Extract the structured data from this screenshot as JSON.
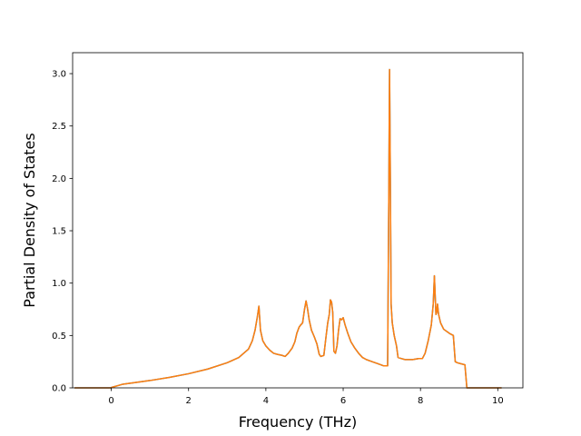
{
  "chart_data": {
    "type": "line",
    "title": "",
    "xlabel": "Frequency (THz)",
    "ylabel": "Partial Density of States",
    "xlim": [
      -1.0,
      10.65
    ],
    "ylim": [
      0.0,
      3.2
    ],
    "xticks": [
      0,
      2,
      4,
      6,
      8,
      10
    ],
    "yticks": [
      0.0,
      0.5,
      1.0,
      1.5,
      2.0,
      2.5,
      3.0
    ],
    "xtick_labels": [
      "0",
      "2",
      "4",
      "6",
      "8",
      "10"
    ],
    "ytick_labels": [
      "0.0",
      "0.5",
      "1.0",
      "1.5",
      "2.0",
      "2.5",
      "3.0"
    ],
    "grid": false,
    "legend": "none",
    "series": [
      {
        "color": "#1f77b4",
        "x": [
          -0.95,
          -0.02,
          0.0,
          0.3,
          0.6,
          1.0,
          1.5,
          2.0,
          2.5,
          3.0,
          3.3,
          3.55,
          3.65,
          3.72,
          3.78,
          3.82,
          3.86,
          3.92,
          4.0,
          4.1,
          4.2,
          4.3,
          4.42,
          4.5,
          4.58,
          4.68,
          4.75,
          4.8,
          4.86,
          4.9,
          4.95,
          5.0,
          5.04,
          5.08,
          5.12,
          5.18,
          5.25,
          5.32,
          5.38,
          5.42,
          5.5,
          5.56,
          5.6,
          5.64,
          5.67,
          5.7,
          5.73,
          5.76,
          5.8,
          5.84,
          5.88,
          5.92,
          5.96,
          6.0,
          6.05,
          6.12,
          6.2,
          6.3,
          6.4,
          6.5,
          6.6,
          6.75,
          6.9,
          7.05,
          7.15,
          7.18,
          7.2,
          7.22,
          7.24,
          7.27,
          7.32,
          7.38,
          7.42,
          7.5,
          7.6,
          7.8,
          7.95,
          8.05,
          8.12,
          8.2,
          8.28,
          8.33,
          8.36,
          8.4,
          8.42,
          8.44,
          8.47,
          8.52,
          8.6,
          8.75,
          8.85,
          8.9,
          8.95,
          9.05,
          9.15,
          9.2,
          9.25,
          9.4,
          10.1
        ],
        "y": [
          0.0,
          0.0,
          0.003,
          0.035,
          0.05,
          0.07,
          0.1,
          0.135,
          0.18,
          0.24,
          0.29,
          0.37,
          0.45,
          0.55,
          0.68,
          0.78,
          0.55,
          0.45,
          0.4,
          0.36,
          0.33,
          0.32,
          0.31,
          0.3,
          0.33,
          0.38,
          0.44,
          0.52,
          0.58,
          0.6,
          0.62,
          0.75,
          0.83,
          0.75,
          0.65,
          0.55,
          0.49,
          0.42,
          0.32,
          0.3,
          0.31,
          0.5,
          0.62,
          0.7,
          0.84,
          0.82,
          0.72,
          0.35,
          0.33,
          0.4,
          0.55,
          0.66,
          0.65,
          0.67,
          0.6,
          0.52,
          0.44,
          0.38,
          0.33,
          0.29,
          0.27,
          0.25,
          0.23,
          0.21,
          0.21,
          1.8,
          3.04,
          2.0,
          0.8,
          0.62,
          0.5,
          0.4,
          0.29,
          0.28,
          0.27,
          0.27,
          0.28,
          0.28,
          0.33,
          0.45,
          0.6,
          0.8,
          1.07,
          0.7,
          0.72,
          0.8,
          0.7,
          0.62,
          0.56,
          0.52,
          0.5,
          0.25,
          0.24,
          0.23,
          0.22,
          0.0,
          0.0,
          0.0,
          0.0
        ]
      },
      {
        "color": "#ff7f0e",
        "x": [
          -0.95,
          -0.02,
          0.0,
          0.3,
          0.6,
          1.0,
          1.5,
          2.0,
          2.5,
          3.0,
          3.3,
          3.55,
          3.65,
          3.72,
          3.78,
          3.82,
          3.86,
          3.92,
          4.0,
          4.1,
          4.2,
          4.3,
          4.42,
          4.5,
          4.58,
          4.68,
          4.75,
          4.8,
          4.86,
          4.9,
          4.95,
          5.0,
          5.04,
          5.08,
          5.12,
          5.18,
          5.25,
          5.32,
          5.38,
          5.42,
          5.5,
          5.56,
          5.6,
          5.64,
          5.67,
          5.7,
          5.73,
          5.76,
          5.8,
          5.84,
          5.88,
          5.92,
          5.96,
          6.0,
          6.05,
          6.12,
          6.2,
          6.3,
          6.4,
          6.5,
          6.6,
          6.75,
          6.9,
          7.05,
          7.15,
          7.18,
          7.2,
          7.22,
          7.24,
          7.27,
          7.32,
          7.38,
          7.42,
          7.5,
          7.6,
          7.8,
          7.95,
          8.05,
          8.12,
          8.2,
          8.28,
          8.33,
          8.36,
          8.4,
          8.42,
          8.44,
          8.47,
          8.52,
          8.6,
          8.75,
          8.85,
          8.9,
          8.95,
          9.05,
          9.15,
          9.2,
          9.25,
          9.4,
          10.1
        ],
        "y": [
          0.0,
          0.0,
          0.003,
          0.035,
          0.05,
          0.07,
          0.1,
          0.135,
          0.18,
          0.24,
          0.29,
          0.37,
          0.45,
          0.55,
          0.68,
          0.78,
          0.55,
          0.45,
          0.4,
          0.36,
          0.33,
          0.32,
          0.31,
          0.3,
          0.33,
          0.38,
          0.44,
          0.52,
          0.58,
          0.6,
          0.62,
          0.75,
          0.83,
          0.75,
          0.65,
          0.55,
          0.49,
          0.42,
          0.32,
          0.3,
          0.31,
          0.5,
          0.62,
          0.7,
          0.84,
          0.82,
          0.72,
          0.35,
          0.33,
          0.4,
          0.55,
          0.66,
          0.65,
          0.67,
          0.6,
          0.52,
          0.44,
          0.38,
          0.33,
          0.29,
          0.27,
          0.25,
          0.23,
          0.21,
          0.21,
          1.8,
          3.04,
          2.0,
          0.8,
          0.62,
          0.5,
          0.4,
          0.29,
          0.28,
          0.27,
          0.27,
          0.28,
          0.28,
          0.33,
          0.45,
          0.6,
          0.8,
          1.07,
          0.7,
          0.72,
          0.8,
          0.7,
          0.62,
          0.56,
          0.52,
          0.5,
          0.25,
          0.24,
          0.23,
          0.22,
          0.0,
          0.0,
          0.0,
          0.0
        ]
      }
    ]
  }
}
